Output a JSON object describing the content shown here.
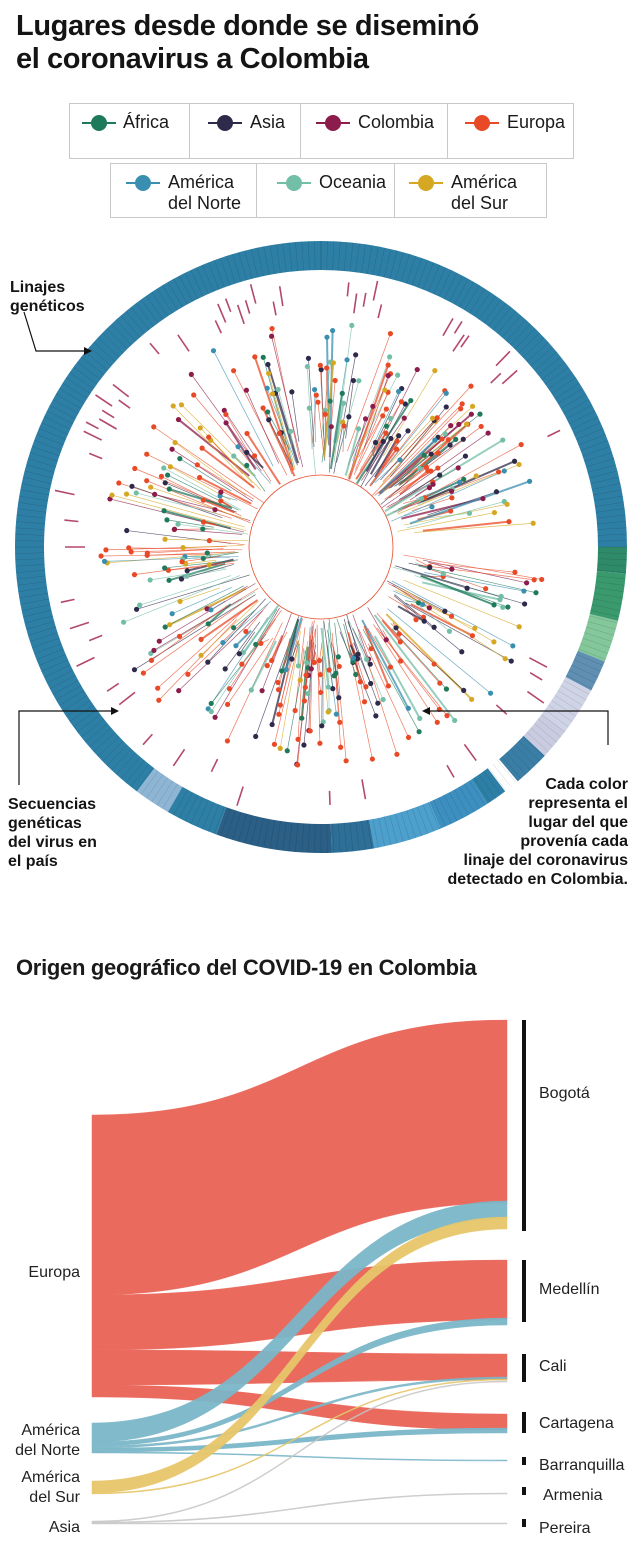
{
  "header": {
    "title_line1": "Lugares desde donde se diseminó",
    "title_line2": "el coronavirus a Colombia"
  },
  "legend": {
    "items": [
      {
        "label": "África",
        "color": "#1f7a5c"
      },
      {
        "label": "Asia",
        "color": "#2d2a4a"
      },
      {
        "label": "Colombia",
        "color": "#8c1c4b"
      },
      {
        "label": "Europa",
        "color": "#e84a27"
      },
      {
        "label": "América del Norte",
        "line1": "América",
        "line2": "del Norte",
        "color": "#3a8fb0"
      },
      {
        "label": "Oceania",
        "color": "#72bea6"
      },
      {
        "label": "América del Sur",
        "line1": "América",
        "line2": "del Sur",
        "color": "#d6a722"
      }
    ]
  },
  "annotations": {
    "lineages": [
      "Linajes",
      "genéticos"
    ],
    "sequences": [
      "Secuencias",
      "genéticas",
      "del virus en",
      "el país"
    ],
    "color_note": [
      "Cada color",
      "representa el",
      "lugar del que",
      "provenía cada",
      "linaje del coronavirus",
      "detectado en Colombia."
    ]
  },
  "sankey": {
    "title": "Origen geográfico del COVID-19 en Colombia",
    "sources": [
      {
        "label": "Europa",
        "color": "#ea6a5e"
      },
      {
        "label": "América del Norte",
        "line1": "América",
        "line2": "del Norte",
        "color": "#7ab6c8"
      },
      {
        "label": "América del Sur",
        "line1": "América",
        "line2": "del Sur",
        "color": "#e7c66a"
      },
      {
        "label": "Asia",
        "color": "#bdbdbd"
      }
    ],
    "targets": [
      "Bogotá",
      "Medellín",
      "Cali",
      "Cartagena",
      "Barranquilla",
      "Armenia",
      "Pereira"
    ],
    "flow_colors": {
      "Europa": "#ea6a5e",
      "América del Norte": "#7ab6c8",
      "América del Sur": "#e7c66a",
      "Asia": "#c6c6c6"
    }
  }
}
